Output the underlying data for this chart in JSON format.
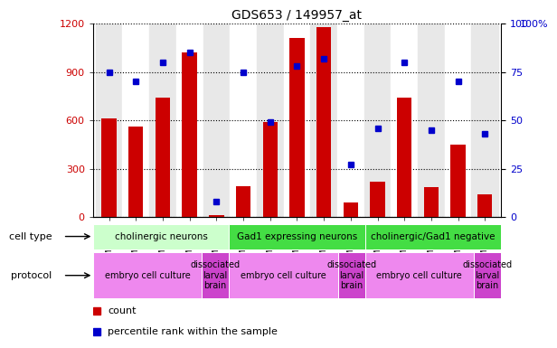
{
  "title": "GDS653 / 149957_at",
  "samples": [
    "GSM16944",
    "GSM16945",
    "GSM16946",
    "GSM16947",
    "GSM16948",
    "GSM16951",
    "GSM16952",
    "GSM16953",
    "GSM16954",
    "GSM16956",
    "GSM16893",
    "GSM16894",
    "GSM16949",
    "GSM16950",
    "GSM16955"
  ],
  "counts": [
    610,
    560,
    740,
    1020,
    10,
    190,
    590,
    1110,
    1180,
    90,
    220,
    740,
    185,
    450,
    140
  ],
  "percentile": [
    75,
    70,
    80,
    85,
    8,
    75,
    49,
    78,
    82,
    27,
    46,
    80,
    45,
    70,
    43
  ],
  "ylim_left": [
    0,
    1200
  ],
  "ylim_right": [
    0,
    100
  ],
  "yticks_left": [
    0,
    300,
    600,
    900,
    1200
  ],
  "yticks_right": [
    0,
    25,
    50,
    75,
    100
  ],
  "bar_color": "#cc0000",
  "dot_color": "#0000cc",
  "cell_type_groups": [
    {
      "label": "cholinergic neurons",
      "start": 0,
      "end": 5,
      "color": "#ccffcc"
    },
    {
      "label": "Gad1 expressing neurons",
      "start": 5,
      "end": 10,
      "color": "#44dd44"
    },
    {
      "label": "cholinergic/Gad1 negative",
      "start": 10,
      "end": 15,
      "color": "#44dd44"
    }
  ],
  "protocol_groups": [
    {
      "label": "embryo cell culture",
      "start": 0,
      "end": 4,
      "color": "#ee88ee"
    },
    {
      "label": "dissociated\nlarval\nbrain",
      "start": 4,
      "end": 5,
      "color": "#cc44cc"
    },
    {
      "label": "embryo cell culture",
      "start": 5,
      "end": 9,
      "color": "#ee88ee"
    },
    {
      "label": "dissociated\nlarval\nbrain",
      "start": 9,
      "end": 10,
      "color": "#cc44cc"
    },
    {
      "label": "embryo cell culture",
      "start": 10,
      "end": 14,
      "color": "#ee88ee"
    },
    {
      "label": "dissociated\nlarval\nbrain",
      "start": 14,
      "end": 15,
      "color": "#cc44cc"
    }
  ],
  "bar_color_legend": "#cc0000",
  "dot_color_legend": "#0000cc",
  "tick_color_left": "#cc0000",
  "tick_color_right": "#0000cc",
  "col_bg_even": "#e8e8e8",
  "col_bg_odd": "#ffffff"
}
